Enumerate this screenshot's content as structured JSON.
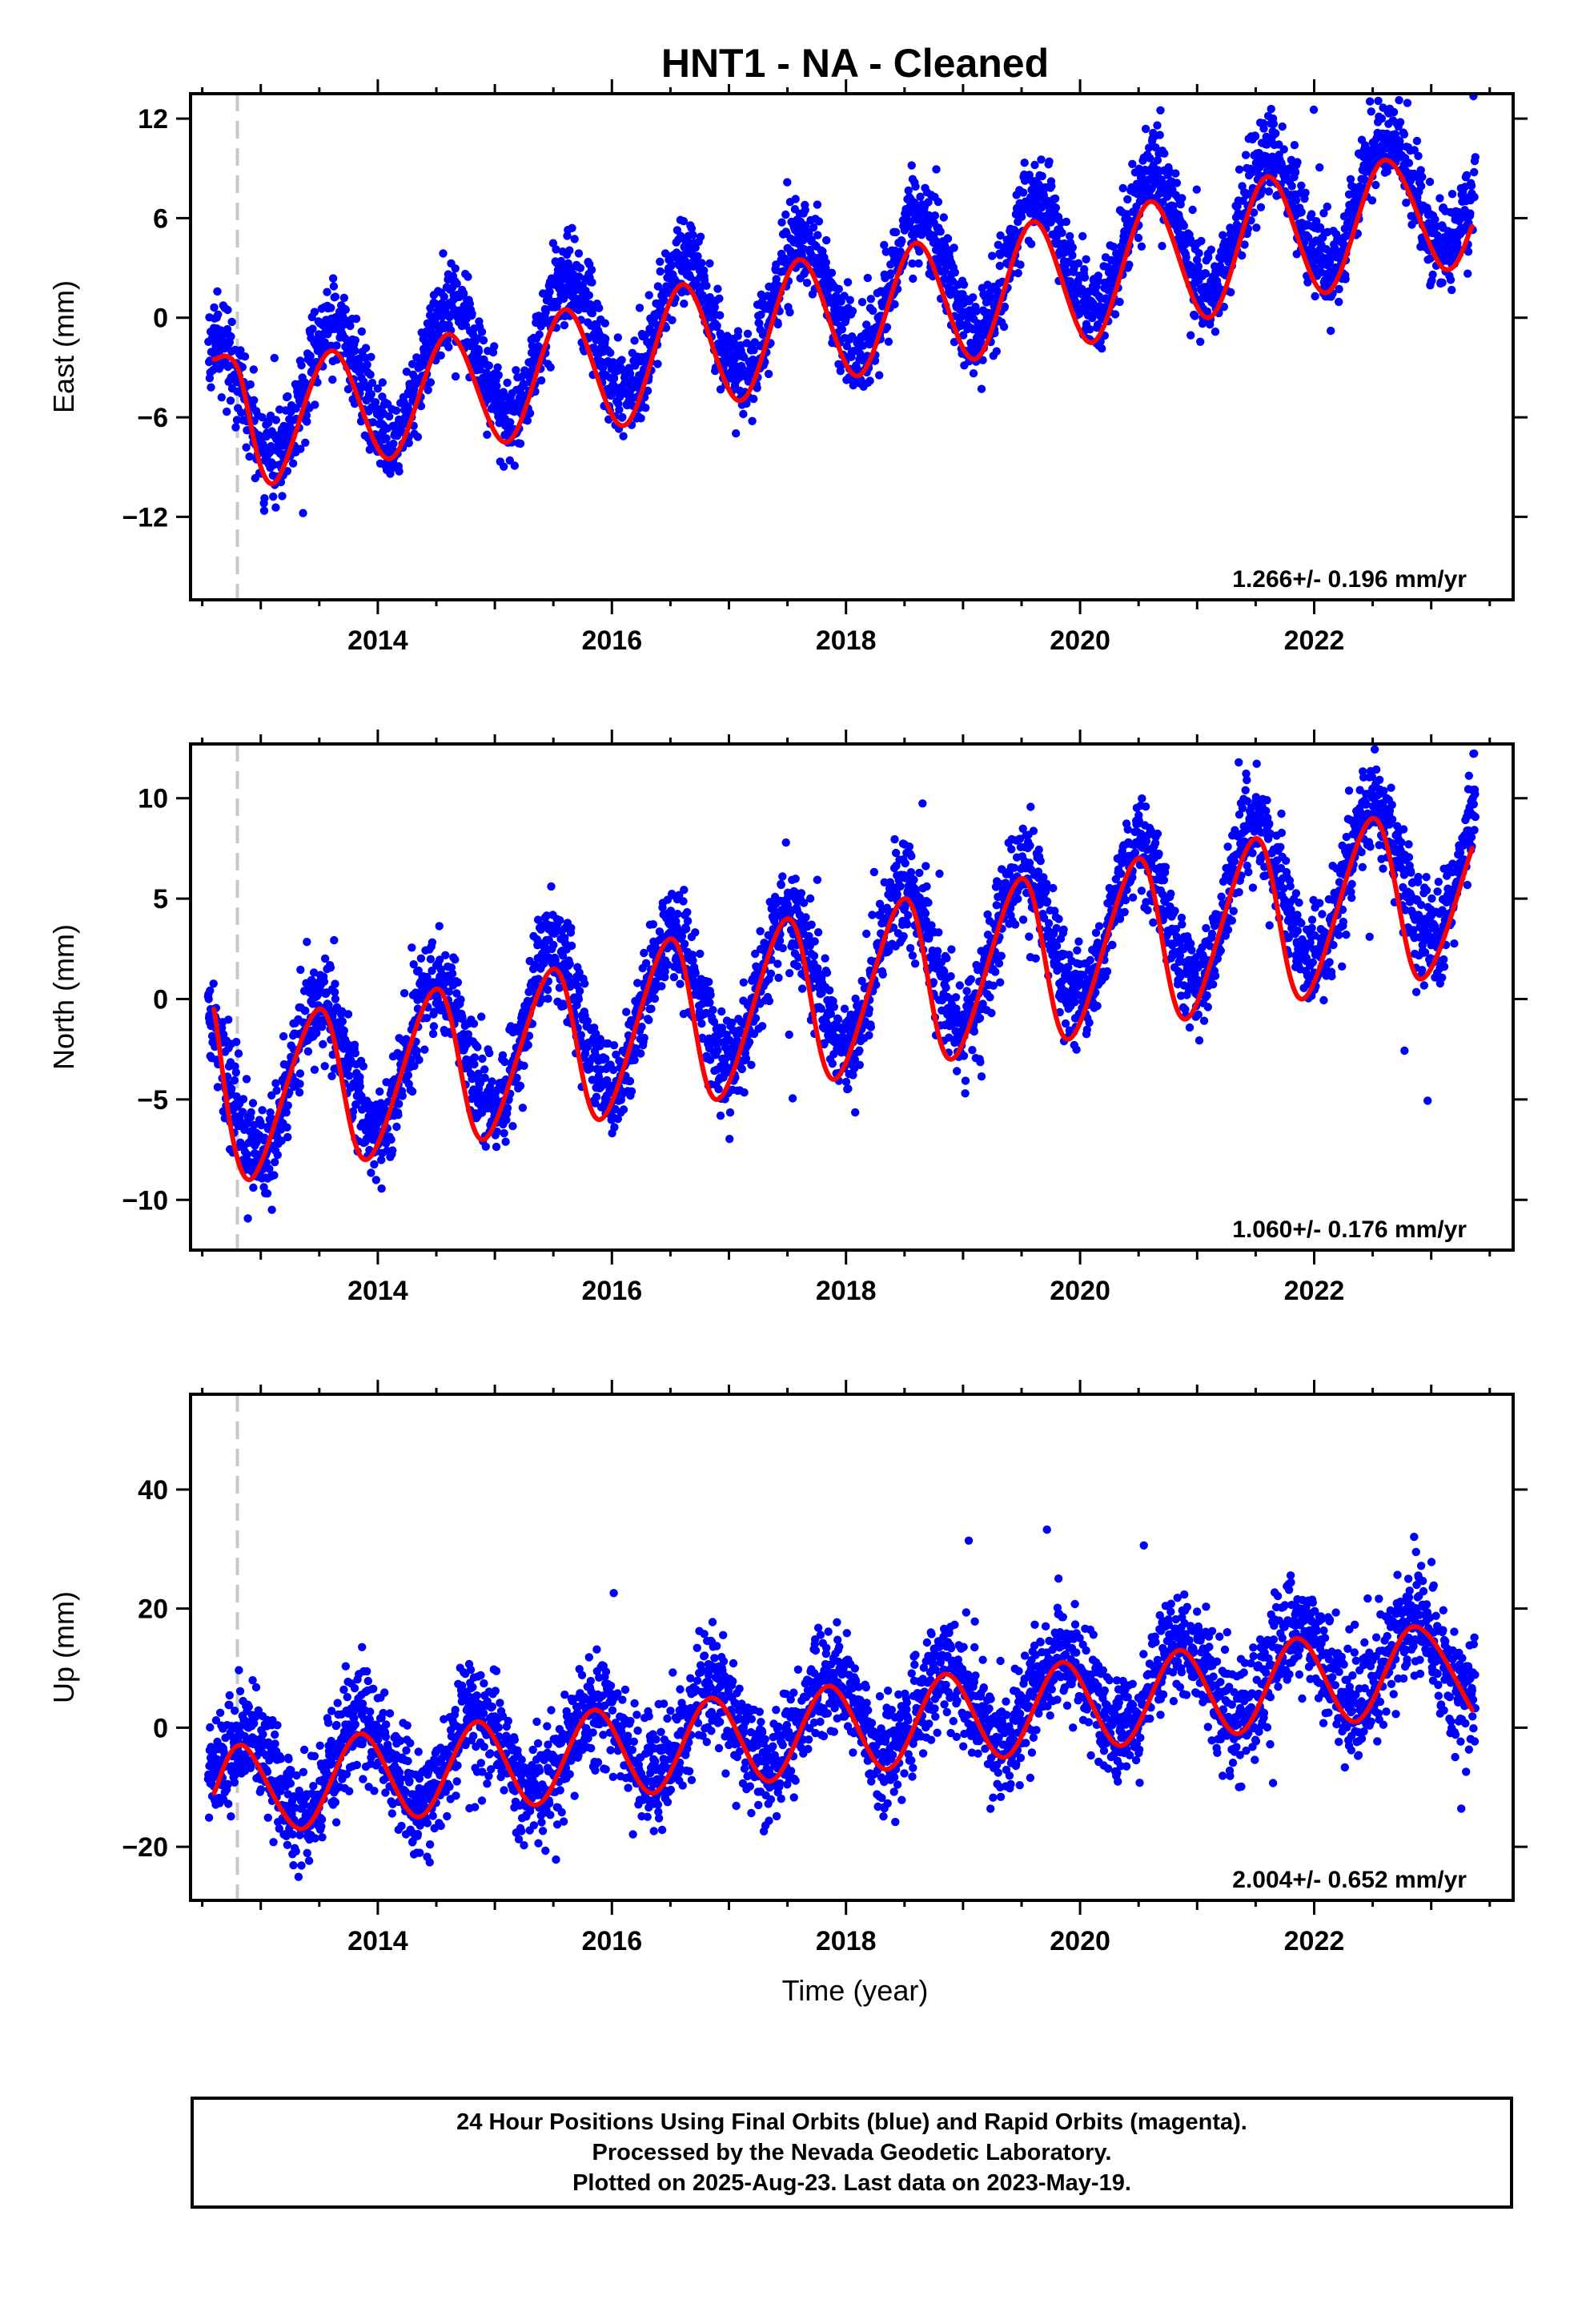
{
  "title": "HNT1  - NA - Cleaned",
  "xlabel": "Time (year)",
  "footer": {
    "lines": [
      "24 Hour Positions Using Final Orbits (blue) and Rapid Orbits (magenta).",
      "Processed by the Nevada Geodetic Laboratory.",
      "Plotted on 2025-Aug-23. Last data on 2023-May-19."
    ]
  },
  "colors": {
    "points": "#0000ff",
    "model": "#ff0000",
    "marker_line": "#c8c8c8"
  },
  "chart_data": [
    {
      "type": "scatter",
      "name": "east",
      "ylabel": "East (mm)",
      "xlim": [
        2012.4,
        2023.7
      ],
      "ylim": [
        -17,
        13.5
      ],
      "yticks": [
        12,
        6,
        0,
        -6,
        -12
      ],
      "ytick_labels": [
        "12",
        "6",
        "0",
        "−6",
        "−12"
      ],
      "xticks": [
        2014,
        2016,
        2018,
        2020,
        2022
      ],
      "rate": "1.266+/- 0.196 mm/yr",
      "equipment_change_year": 2012.8,
      "data_range": [
        2012.55,
        2023.38
      ],
      "trend": {
        "offset_at_start": -5.5,
        "slope_mm_per_yr": 1.266
      },
      "seasonal": {
        "amplitude": 3.8,
        "peak_phase_year": 0.62
      },
      "scatter_sigma": 1.3,
      "model_curve": {
        "x": [
          2012.6,
          2012.8,
          2013.1,
          2013.6,
          2014.1,
          2014.6,
          2015.1,
          2015.6,
          2016.1,
          2016.6,
          2017.1,
          2017.6,
          2018.1,
          2018.6,
          2019.1,
          2019.6,
          2020.1,
          2020.6,
          2021.1,
          2021.6,
          2022.1,
          2022.6,
          2023.1,
          2023.35
        ],
        "y": [
          -2.5,
          -3.0,
          -10.0,
          -2.0,
          -8.5,
          -1.0,
          -7.5,
          0.5,
          -6.5,
          2.0,
          -5.0,
          3.5,
          -3.5,
          4.5,
          -2.5,
          5.8,
          -1.5,
          7.0,
          0.0,
          8.5,
          1.5,
          9.5,
          3.0,
          5.5
        ]
      }
    },
    {
      "type": "scatter",
      "name": "north",
      "ylabel": "North (mm)",
      "xlim": [
        2012.4,
        2023.7
      ],
      "ylim": [
        -12.5,
        12.7
      ],
      "yticks": [
        10,
        5,
        0,
        -5,
        -10
      ],
      "ytick_labels": [
        "10",
        "5",
        "0",
        "−5",
        "−10"
      ],
      "xticks": [
        2014,
        2016,
        2018,
        2020,
        2022
      ],
      "rate": "1.060+/- 0.176 mm/yr",
      "equipment_change_year": 2012.8,
      "data_range": [
        2012.55,
        2023.38
      ],
      "trend": {
        "offset_at_start": -4.5,
        "slope_mm_per_yr": 1.06
      },
      "seasonal": {
        "amplitude": 3.6,
        "peak_phase_year": 0.5
      },
      "scatter_sigma": 1.2,
      "model_curve": {
        "x": [
          2012.6,
          2012.9,
          2013.5,
          2013.9,
          2014.5,
          2014.9,
          2015.5,
          2015.9,
          2016.5,
          2016.9,
          2017.5,
          2017.9,
          2018.5,
          2018.9,
          2019.5,
          2019.9,
          2020.5,
          2020.9,
          2021.5,
          2021.9,
          2022.5,
          2022.9,
          2023.35
        ],
        "y": [
          -0.5,
          -9.0,
          -0.5,
          -8.0,
          0.5,
          -7.0,
          1.5,
          -6.0,
          3.0,
          -5.0,
          4.0,
          -4.0,
          5.0,
          -3.0,
          6.0,
          -2.0,
          7.0,
          -1.0,
          8.0,
          0.0,
          9.0,
          1.0,
          7.5
        ]
      }
    },
    {
      "type": "scatter",
      "name": "up",
      "ylabel": "Up (mm)",
      "xlim": [
        2012.4,
        2023.7
      ],
      "ylim": [
        -29,
        56
      ],
      "yticks": [
        40,
        20,
        0,
        -20
      ],
      "ytick_labels": [
        "40",
        "20",
        "0",
        "−20"
      ],
      "xticks": [
        2014,
        2016,
        2018,
        2020,
        2022
      ],
      "rate": "2.004+/- 0.652 mm/yr",
      "equipment_change_year": 2012.8,
      "data_range": [
        2012.55,
        2023.38
      ],
      "trend": {
        "offset_at_start": -9.0,
        "slope_mm_per_yr": 2.004
      },
      "seasonal": {
        "amplitude": 7.0,
        "peak_phase_year": 0.85
      },
      "scatter_sigma": 4.5,
      "model_curve": {
        "x": [
          2012.6,
          2012.85,
          2013.35,
          2013.85,
          2014.35,
          2014.85,
          2015.35,
          2015.85,
          2016.35,
          2016.85,
          2017.35,
          2017.85,
          2018.35,
          2018.85,
          2019.35,
          2019.85,
          2020.35,
          2020.85,
          2021.35,
          2021.85,
          2022.35,
          2022.85,
          2023.35
        ],
        "y": [
          -11.0,
          -3.0,
          -17.0,
          -1.0,
          -15.0,
          1.0,
          -13.0,
          3.0,
          -11.0,
          5.0,
          -9.0,
          7.0,
          -7.0,
          9.0,
          -5.0,
          11.0,
          -3.0,
          13.0,
          -1.0,
          15.0,
          1.0,
          17.0,
          3.0
        ]
      }
    }
  ]
}
